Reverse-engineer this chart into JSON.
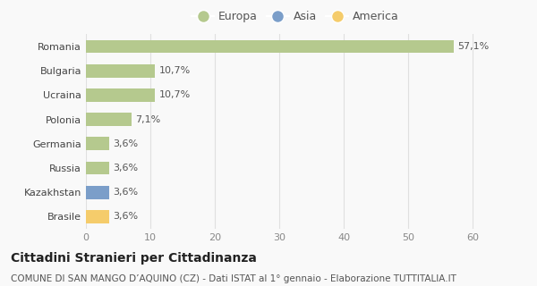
{
  "categories": [
    "Romania",
    "Bulgaria",
    "Ucraina",
    "Polonia",
    "Germania",
    "Russia",
    "Kazakhstan",
    "Brasile"
  ],
  "values": [
    57.1,
    10.7,
    10.7,
    7.1,
    3.6,
    3.6,
    3.6,
    3.6
  ],
  "labels": [
    "57,1%",
    "10,7%",
    "10,7%",
    "7,1%",
    "3,6%",
    "3,6%",
    "3,6%",
    "3,6%"
  ],
  "colors": [
    "#b5c98e",
    "#b5c98e",
    "#b5c98e",
    "#b5c98e",
    "#b5c98e",
    "#b5c98e",
    "#7b9ec9",
    "#f5cc6b"
  ],
  "legend": [
    {
      "label": "Europa",
      "color": "#b5c98e"
    },
    {
      "label": "Asia",
      "color": "#7b9ec9"
    },
    {
      "label": "America",
      "color": "#f5cc6b"
    }
  ],
  "xlim": [
    0,
    65
  ],
  "xticks": [
    0,
    10,
    20,
    30,
    40,
    50,
    60
  ],
  "title": "Cittadini Stranieri per Cittadinanza",
  "subtitle": "COMUNE DI SAN MANGO D’AQUINO (CZ) - Dati ISTAT al 1° gennaio - Elaborazione TUTTITALIA.IT",
  "background_color": "#f9f9f9",
  "bar_height": 0.55,
  "title_fontsize": 10,
  "subtitle_fontsize": 7.5,
  "label_fontsize": 8,
  "tick_fontsize": 8,
  "legend_fontsize": 9
}
